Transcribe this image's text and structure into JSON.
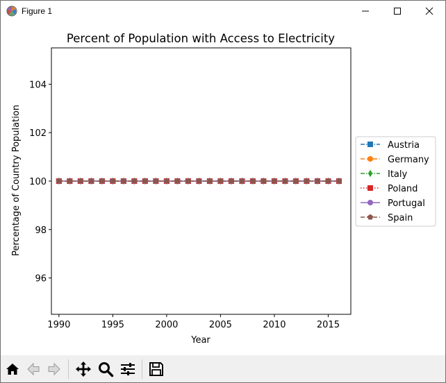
{
  "window": {
    "title": "Figure 1",
    "icons": {
      "app": "matplotlib-logo-icon",
      "minimize": "minimize-icon",
      "maximize": "maximize-icon",
      "close": "close-icon"
    }
  },
  "toolbar": {
    "buttons": [
      {
        "name": "home",
        "icon": "home-icon"
      },
      {
        "name": "back",
        "icon": "back-arrow-icon"
      },
      {
        "name": "forward",
        "icon": "forward-arrow-icon"
      },
      {
        "name": "pan",
        "icon": "pan-icon"
      },
      {
        "name": "zoom",
        "icon": "zoom-icon"
      },
      {
        "name": "configure-subplots",
        "icon": "sliders-icon"
      },
      {
        "name": "save",
        "icon": "save-icon"
      }
    ]
  },
  "chart_data": {
    "type": "line",
    "title": "Percent of Population with Access to Electricity",
    "xlabel": "Year",
    "ylabel": "Percentage of Country Population",
    "x": [
      1990,
      1991,
      1992,
      1993,
      1994,
      1995,
      1996,
      1997,
      1998,
      1999,
      2000,
      2001,
      2002,
      2003,
      2004,
      2005,
      2006,
      2007,
      2008,
      2009,
      2010,
      2011,
      2012,
      2013,
      2014,
      2015,
      2016
    ],
    "xticks": [
      1990,
      1995,
      2000,
      2005,
      2010,
      2015
    ],
    "yticks": [
      96,
      98,
      100,
      102,
      104
    ],
    "xlim": [
      1989.3,
      2017.1
    ],
    "ylim": [
      94.5,
      105.5
    ],
    "grid": false,
    "legend_position": "right (outside axes)",
    "series": [
      {
        "name": "Austria",
        "color": "#1f77b4",
        "marker": "square",
        "linestyle": "dash-dot",
        "values": [
          100,
          100,
          100,
          100,
          100,
          100,
          100,
          100,
          100,
          100,
          100,
          100,
          100,
          100,
          100,
          100,
          100,
          100,
          100,
          100,
          100,
          100,
          100,
          100,
          100,
          100,
          100
        ]
      },
      {
        "name": "Germany",
        "color": "#ff7f0e",
        "marker": "hexagon",
        "linestyle": "dashed",
        "values": [
          100,
          100,
          100,
          100,
          100,
          100,
          100,
          100,
          100,
          100,
          100,
          100,
          100,
          100,
          100,
          100,
          100,
          100,
          100,
          100,
          100,
          100,
          100,
          100,
          100,
          100,
          100
        ]
      },
      {
        "name": "Italy",
        "color": "#2ca02c",
        "marker": "diamond",
        "linestyle": "dash-dot",
        "values": [
          100,
          100,
          100,
          100,
          100,
          100,
          100,
          100,
          100,
          100,
          100,
          100,
          100,
          100,
          100,
          100,
          100,
          100,
          100,
          100,
          100,
          100,
          100,
          100,
          100,
          100,
          100
        ]
      },
      {
        "name": "Poland",
        "color": "#d62728",
        "marker": "square",
        "linestyle": "dotted",
        "values": [
          100,
          100,
          100,
          100,
          100,
          100,
          100,
          100,
          100,
          100,
          100,
          100,
          100,
          100,
          100,
          100,
          100,
          100,
          100,
          100,
          100,
          100,
          100,
          100,
          100,
          100,
          100
        ]
      },
      {
        "name": "Portugal",
        "color": "#9467bd",
        "marker": "circle",
        "linestyle": "solid",
        "values": [
          100,
          100,
          100,
          100,
          100,
          100,
          100,
          100,
          100,
          100,
          100,
          100,
          100,
          100,
          100,
          100,
          100,
          100,
          100,
          100,
          100,
          100,
          100,
          100,
          100,
          100,
          100
        ]
      },
      {
        "name": "Spain",
        "color": "#8c564b",
        "marker": "pentagon",
        "linestyle": "dashed",
        "values": [
          100,
          100,
          100,
          100,
          100,
          100,
          100,
          100,
          100,
          100,
          100,
          100,
          100,
          100,
          100,
          100,
          100,
          100,
          100,
          100,
          100,
          100,
          100,
          100,
          100,
          100,
          100
        ]
      }
    ]
  }
}
